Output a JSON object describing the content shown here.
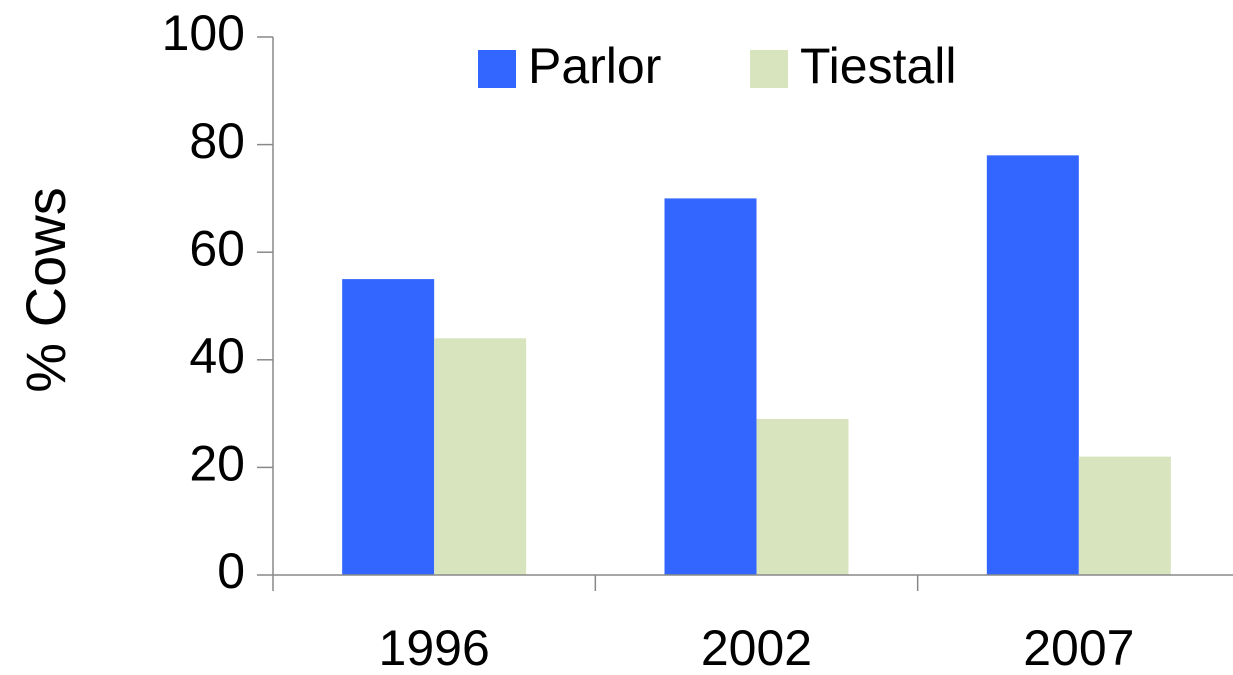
{
  "chart_data": {
    "type": "bar",
    "y_label": "% Cows",
    "categories": [
      "1996",
      "2002",
      "2007"
    ],
    "series": [
      {
        "name": "Parlor",
        "color": "#3366ff",
        "values": [
          55,
          70,
          78
        ]
      },
      {
        "name": "Tiestall",
        "color": "#d7e4bd",
        "values": [
          44,
          29,
          22
        ]
      }
    ],
    "ylim": [
      0,
      100
    ],
    "yticks": [
      0,
      20,
      40,
      60,
      80,
      100
    ],
    "legend": "top"
  }
}
